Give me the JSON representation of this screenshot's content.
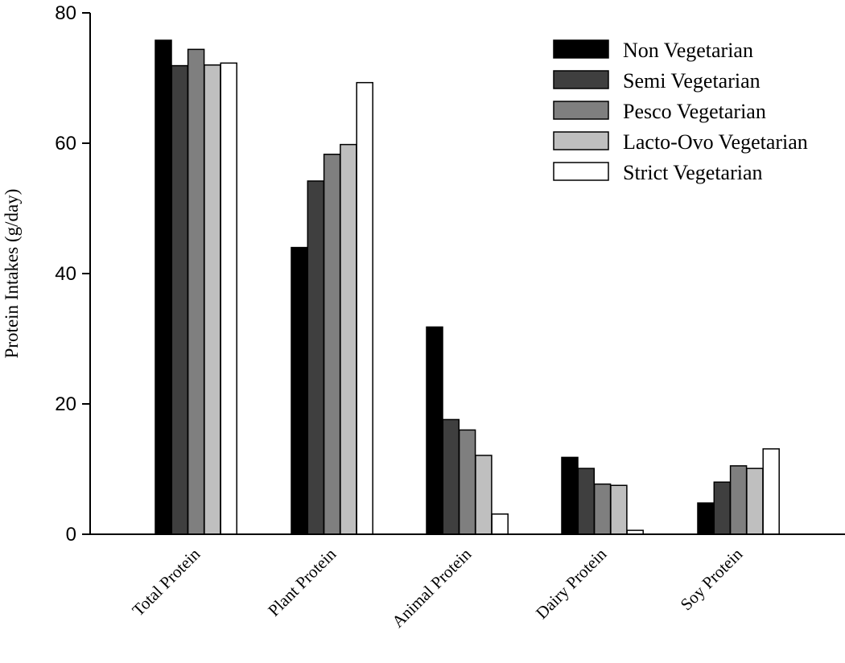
{
  "chart_data": {
    "type": "bar",
    "ylabel": "Protein Intakes (g/day)",
    "ylim": [
      0,
      80
    ],
    "yticks": [
      0,
      20,
      40,
      60,
      80
    ],
    "categories": [
      "Total Protein",
      "Plant Protein",
      "Animal Protein",
      "Dairy Protein",
      "Soy Protein"
    ],
    "series": [
      {
        "name": "Non Vegetarian",
        "color": "#000000",
        "values": [
          75.8,
          44.0,
          31.8,
          11.8,
          4.8
        ]
      },
      {
        "name": "Semi Vegetarian",
        "color": "#3f3f3f",
        "values": [
          71.9,
          54.2,
          17.6,
          10.1,
          8.0
        ]
      },
      {
        "name": "Pesco Vegetarian",
        "color": "#7f7f7f",
        "values": [
          74.4,
          58.3,
          16.0,
          7.7,
          10.5
        ]
      },
      {
        "name": "Lacto-Ovo Vegetarian",
        "color": "#bfbfbf",
        "values": [
          72.0,
          59.8,
          12.1,
          7.5,
          10.1
        ]
      },
      {
        "name": "Strict Vegetarian",
        "color": "#ffffff",
        "values": [
          72.3,
          69.3,
          3.1,
          0.6,
          13.1
        ]
      }
    ],
    "legend": "top-right",
    "grid": false
  }
}
